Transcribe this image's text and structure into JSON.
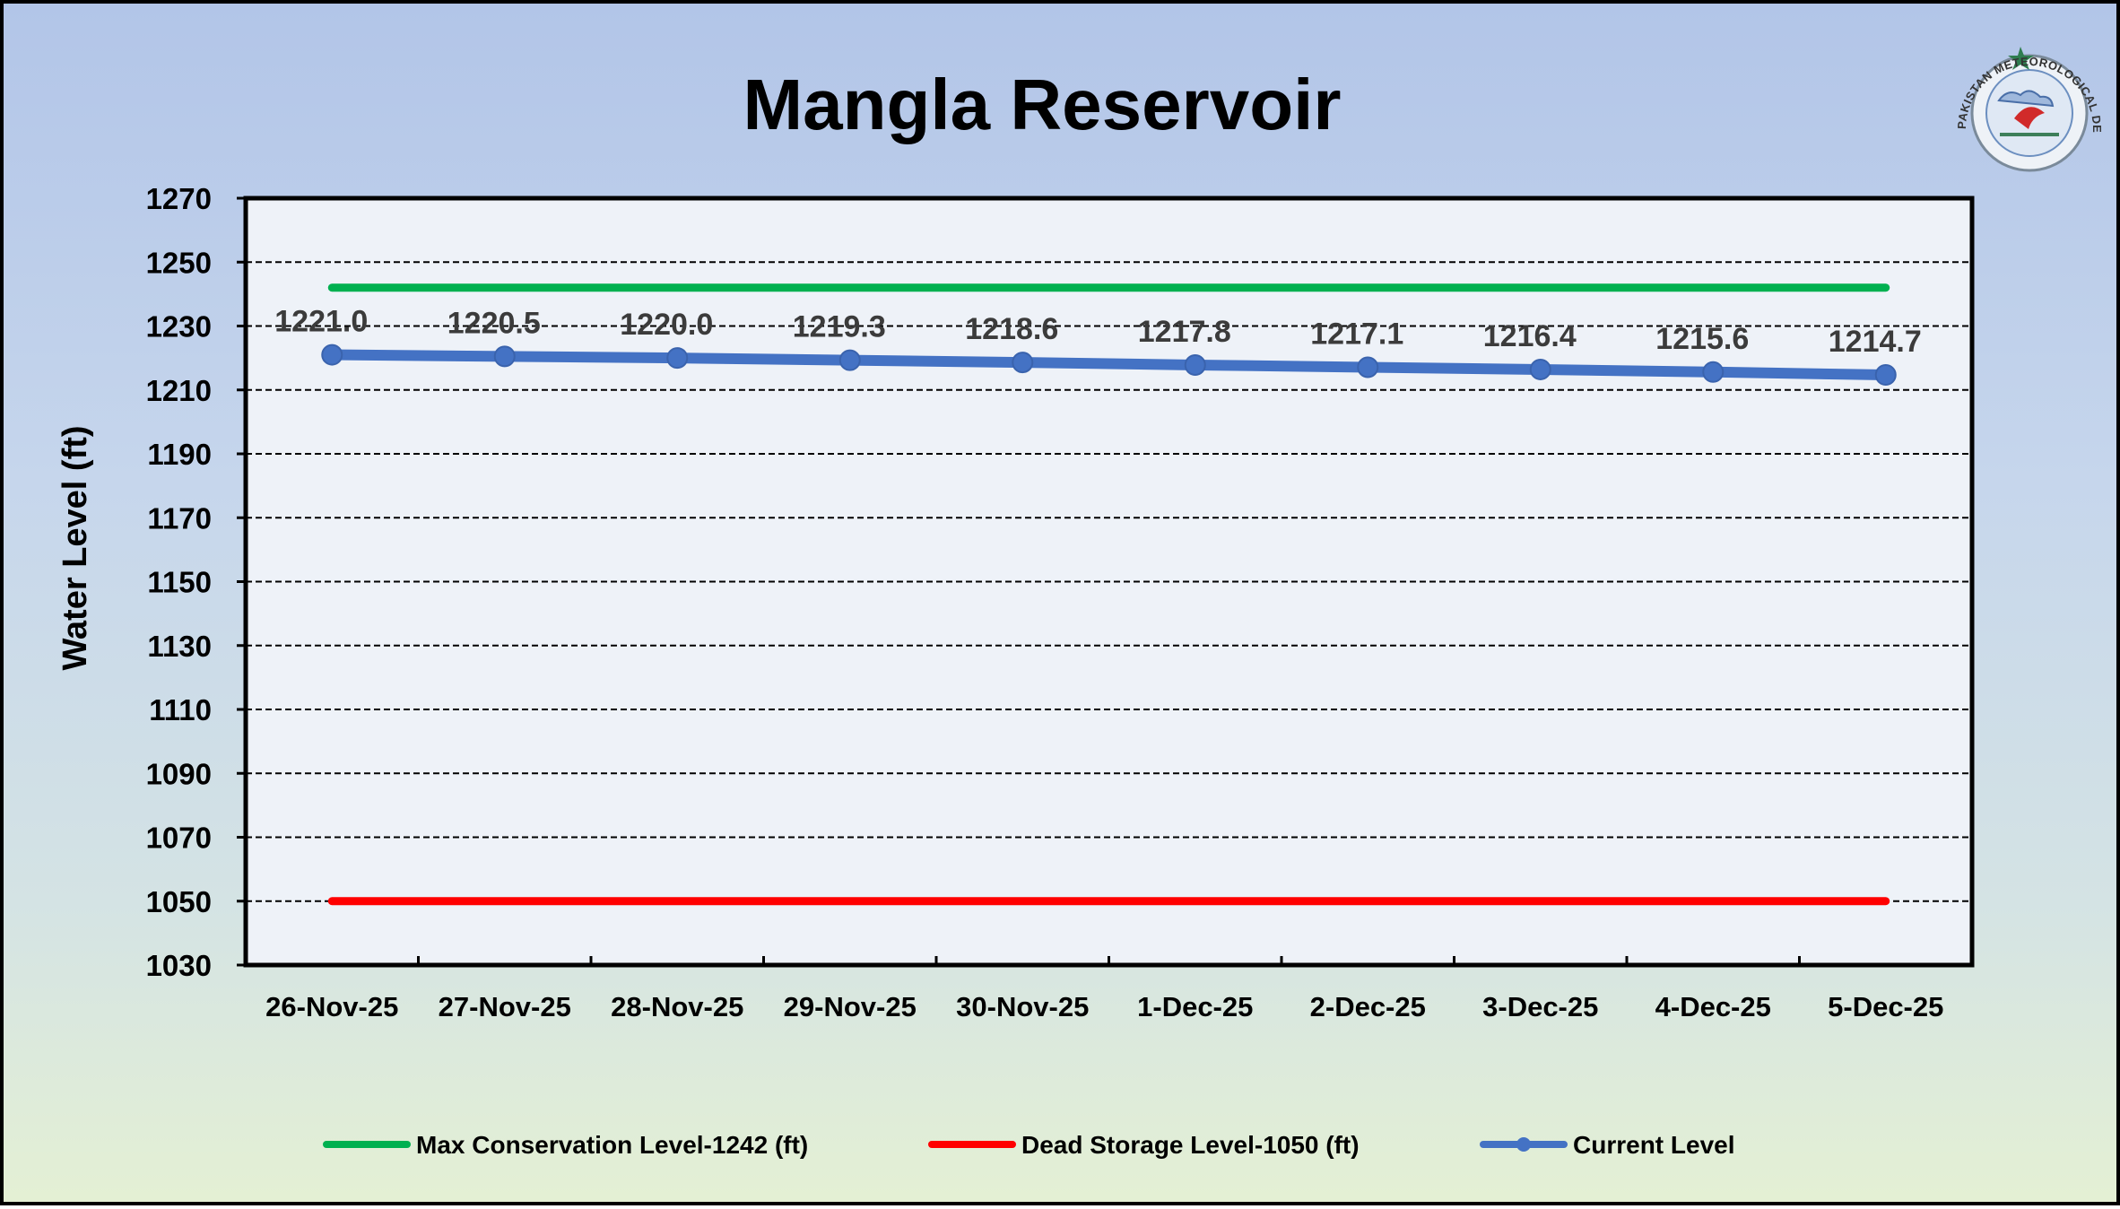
{
  "chart_data": {
    "type": "line",
    "title": "Mangla Reservoir",
    "ylabel": "Water Level (ft)",
    "xlabel": "",
    "ylim": [
      1030,
      1270
    ],
    "y_ticks": [
      1030,
      1050,
      1070,
      1090,
      1110,
      1130,
      1150,
      1170,
      1190,
      1210,
      1230,
      1250,
      1270
    ],
    "grid": "horizontal dashed",
    "legend_position": "bottom",
    "categories": [
      "26-Nov-25",
      "27-Nov-25",
      "28-Nov-25",
      "29-Nov-25",
      "30-Nov-25",
      "1-Dec-25",
      "2-Dec-25",
      "3-Dec-25",
      "4-Dec-25",
      "5-Dec-25"
    ],
    "series": [
      {
        "name": "Max Conservation Level-1242 (ft)",
        "color": "#00b050",
        "marker": "none",
        "values": [
          1242,
          1242,
          1242,
          1242,
          1242,
          1242,
          1242,
          1242,
          1242,
          1242
        ]
      },
      {
        "name": "Dead Storage Level-1050 (ft)",
        "color": "#ff0000",
        "marker": "none",
        "values": [
          1050,
          1050,
          1050,
          1050,
          1050,
          1050,
          1050,
          1050,
          1050,
          1050
        ]
      },
      {
        "name": "Current Level",
        "color": "#4472c4",
        "marker": "circle",
        "values": [
          1221.0,
          1220.5,
          1220.0,
          1219.3,
          1218.6,
          1217.8,
          1217.1,
          1216.4,
          1215.6,
          1214.7
        ],
        "data_labels": [
          "1221.0",
          "1220.5",
          "1220.0",
          "1219.3",
          "1218.6",
          "1217.8",
          "1217.1",
          "1216.4",
          "1215.6",
          "1214.7"
        ]
      }
    ]
  },
  "logo": {
    "name": "pakistan-meteorological-department-logo",
    "text": "PAKISTAN METEOROLOGICAL DEPARTMENT"
  }
}
